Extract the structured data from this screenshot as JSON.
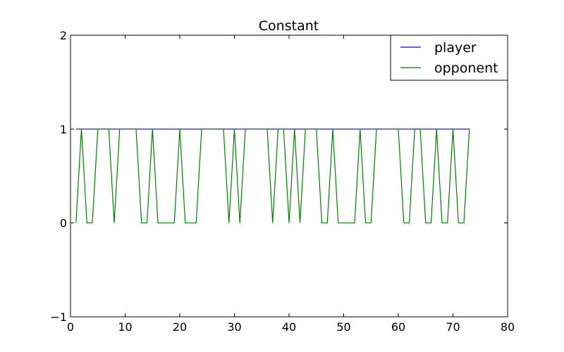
{
  "chart_data": {
    "type": "line",
    "title": "Constant",
    "xlabel": "",
    "ylabel": "",
    "xlim": [
      0,
      80
    ],
    "ylim": [
      -1,
      2
    ],
    "xticks": [
      0,
      10,
      20,
      30,
      40,
      50,
      60,
      70,
      80
    ],
    "yticks": [
      -1,
      0,
      1,
      2
    ],
    "xtick_labels": [
      "0",
      "10",
      "20",
      "30",
      "40",
      "50",
      "60",
      "70",
      "80"
    ],
    "ytick_labels": [
      "−1",
      "0",
      "1",
      "2"
    ],
    "grid": false,
    "legend_position": "top-right",
    "x": [
      1,
      2,
      3,
      4,
      5,
      6,
      7,
      8,
      9,
      10,
      11,
      12,
      13,
      14,
      15,
      16,
      17,
      18,
      19,
      20,
      21,
      22,
      23,
      24,
      25,
      26,
      27,
      28,
      29,
      30,
      31,
      32,
      33,
      34,
      35,
      36,
      37,
      38,
      39,
      40,
      41,
      42,
      43,
      44,
      45,
      46,
      47,
      48,
      49,
      50,
      51,
      52,
      53,
      54,
      55,
      56,
      57,
      58,
      59,
      60,
      61,
      62,
      63,
      64,
      65,
      66,
      67,
      68,
      69,
      70,
      71,
      72,
      73
    ],
    "series": [
      {
        "name": "player",
        "color": "#0000ff",
        "values": [
          1,
          1,
          1,
          1,
          1,
          1,
          1,
          1,
          1,
          1,
          1,
          1,
          1,
          1,
          1,
          1,
          1,
          1,
          1,
          1,
          1,
          1,
          1,
          1,
          1,
          1,
          1,
          1,
          1,
          1,
          1,
          1,
          1,
          1,
          1,
          1,
          1,
          1,
          1,
          1,
          1,
          1,
          1,
          1,
          1,
          1,
          1,
          1,
          1,
          1,
          1,
          1,
          1,
          1,
          1,
          1,
          1,
          1,
          1,
          1,
          1,
          1,
          1,
          1,
          1,
          1,
          1,
          1,
          1,
          1,
          1,
          1,
          1
        ]
      },
      {
        "name": "opponent",
        "color": "#008000",
        "values": [
          0,
          1,
          0,
          0,
          1,
          1,
          1,
          0,
          1,
          1,
          1,
          1,
          0,
          0,
          1,
          0,
          0,
          0,
          0,
          1,
          0,
          0,
          0,
          1,
          1,
          1,
          1,
          1,
          0,
          1,
          0,
          1,
          1,
          1,
          1,
          1,
          0,
          1,
          1,
          0,
          1,
          0,
          1,
          1,
          1,
          0,
          0,
          1,
          0,
          0,
          0,
          0,
          1,
          0,
          0,
          1,
          1,
          1,
          1,
          1,
          0,
          0,
          1,
          1,
          0,
          0,
          1,
          0,
          0,
          1,
          0,
          0,
          1
        ]
      }
    ]
  }
}
